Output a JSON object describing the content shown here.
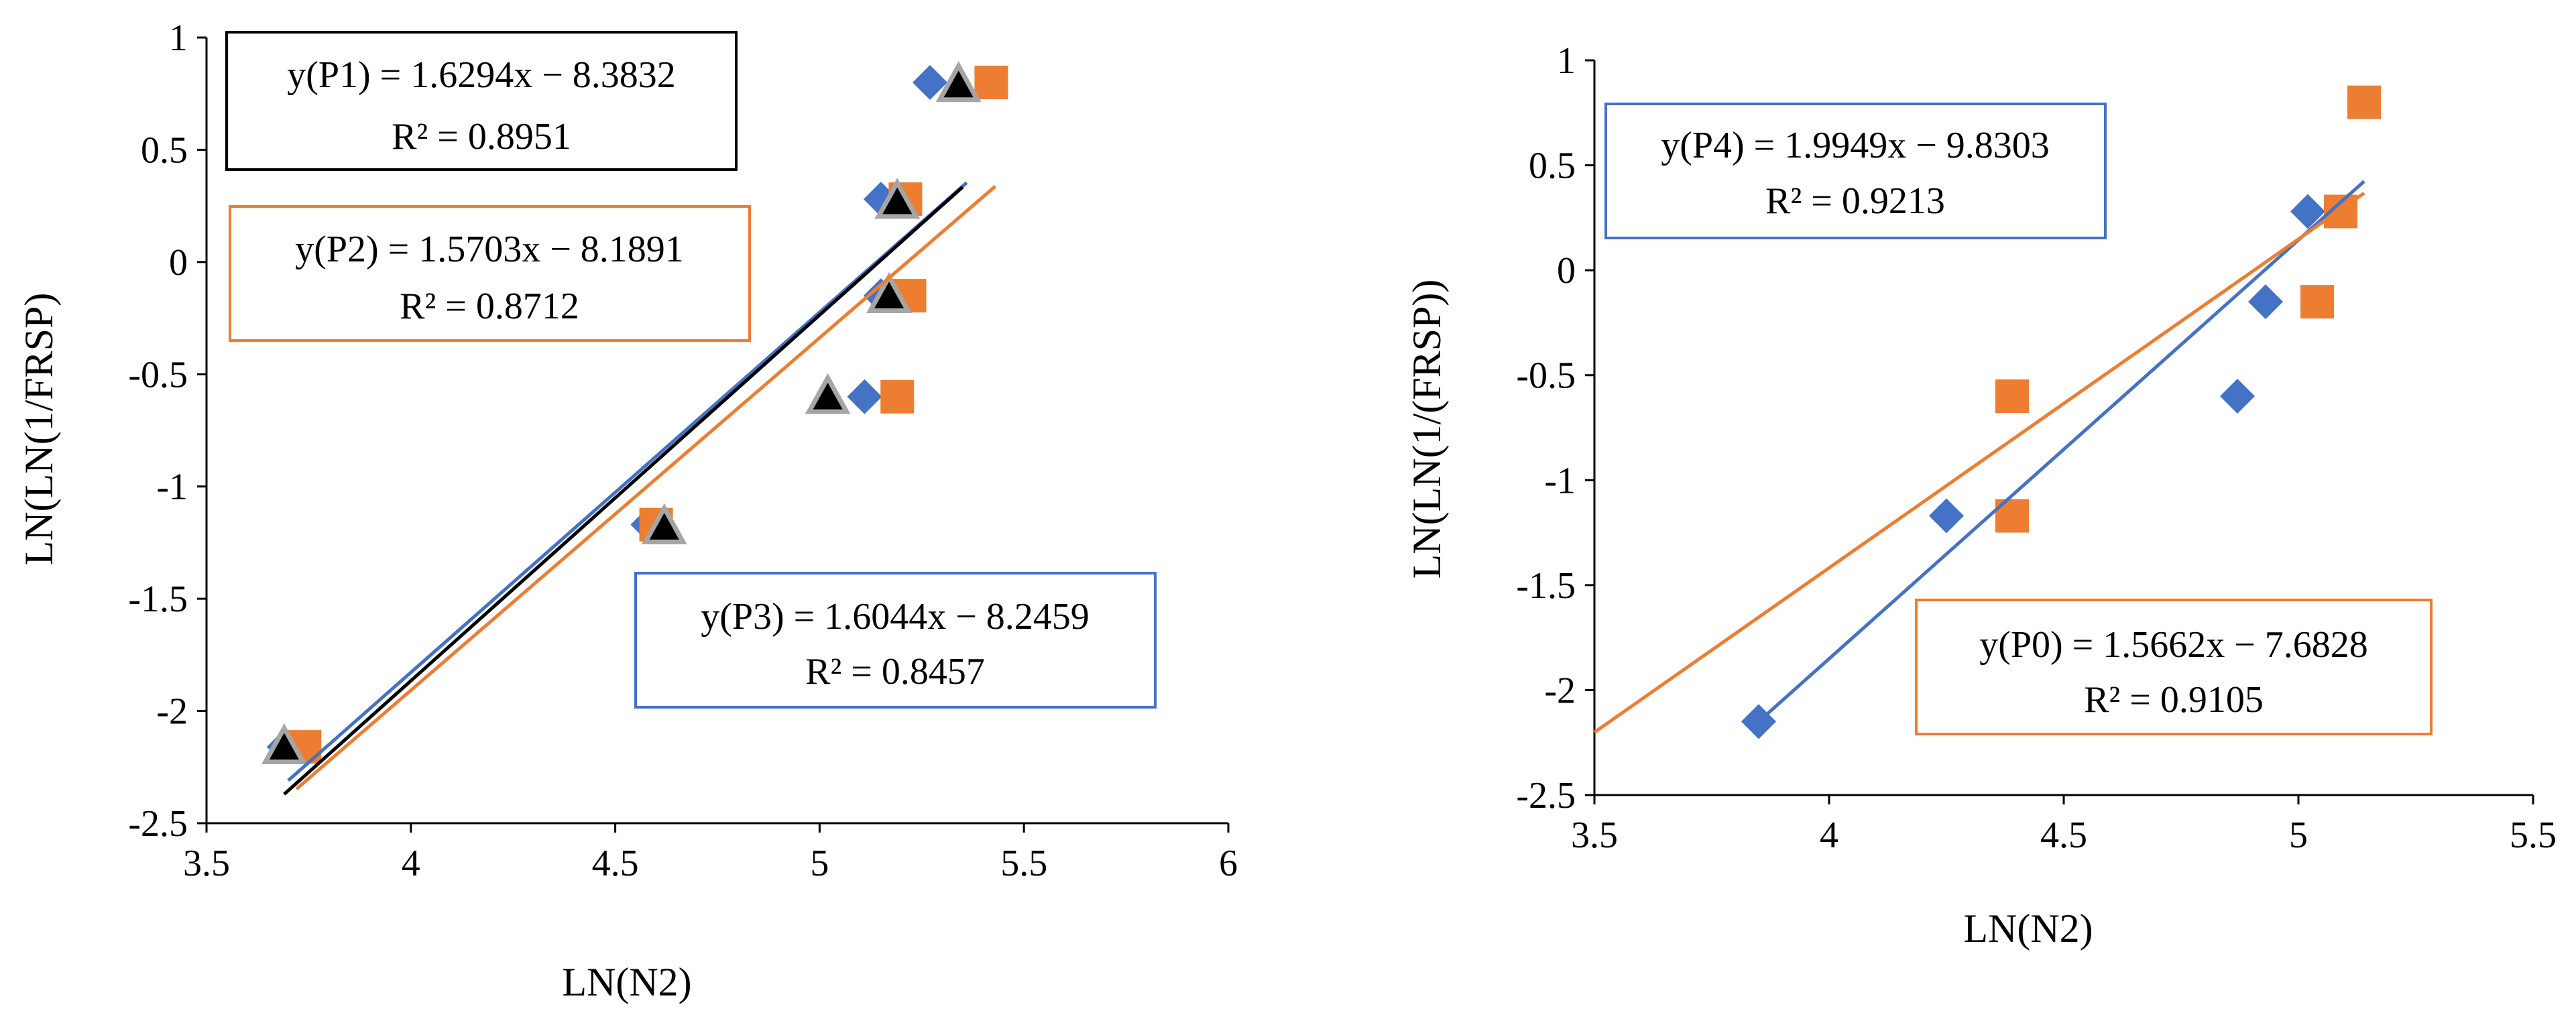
{
  "chart_data": [
    {
      "type": "scatter",
      "id": "left",
      "xlabel": "LN(N2)",
      "ylabel": "LN(LN(1/FRSP)",
      "xlim": [
        3.5,
        6
      ],
      "ylim": [
        -2.5,
        1
      ],
      "xticks": [
        3.5,
        4,
        4.5,
        5,
        5.5,
        6
      ],
      "yticks": [
        -2.5,
        -2,
        -1.5,
        -1,
        -0.5,
        0,
        0.5,
        1
      ],
      "xtick_labels": [
        "3.5",
        "4",
        "4.5",
        "5",
        "5.5",
        "6"
      ],
      "ytick_labels": [
        "-2.5",
        "-2",
        "-1.5",
        "-1",
        "-0.5",
        "0",
        "0.5",
        "1"
      ],
      "series": [
        {
          "name": "P3",
          "marker": "diamond",
          "color": "#4472C4",
          "points": [
            [
              3.69,
              -2.16
            ],
            [
              4.58,
              -1.17
            ],
            [
              5.11,
              -0.6
            ],
            [
              5.15,
              -0.15
            ],
            [
              5.15,
              0.28
            ],
            [
              5.27,
              0.8
            ]
          ],
          "trend": {
            "slope": 1.6044,
            "intercept": -8.2459,
            "x_range": [
              3.7,
              5.36
            ],
            "color": "#4472C4"
          }
        },
        {
          "name": "P2",
          "marker": "square",
          "color": "#ED7D31",
          "points": [
            [
              3.74,
              -2.16
            ],
            [
              4.6,
              -1.17
            ],
            [
              5.19,
              -0.6
            ],
            [
              5.22,
              -0.15
            ],
            [
              5.21,
              0.28
            ],
            [
              5.42,
              0.8
            ]
          ],
          "trend": {
            "slope": 1.5703,
            "intercept": -8.1891,
            "x_range": [
              3.72,
              5.43
            ],
            "color": "#ED7D31"
          }
        },
        {
          "name": "P1",
          "marker": "triangle",
          "color": "#000000",
          "points": [
            [
              3.69,
              -2.16
            ],
            [
              4.62,
              -1.18
            ],
            [
              5.02,
              -0.6
            ],
            [
              5.17,
              -0.15
            ],
            [
              5.19,
              0.27
            ],
            [
              5.34,
              0.79
            ]
          ],
          "trend": {
            "slope": 1.6294,
            "intercept": -8.3832,
            "x_range": [
              3.69,
              5.35
            ],
            "color": "#000000"
          }
        }
      ],
      "annotations": [
        {
          "line1": "y(P1) = 1.6294x  − 8.3832",
          "line2": "R² = 0.8951",
          "border": "#000000"
        },
        {
          "line1": "y(P2) = 1.5703x  −  8.1891",
          "line2": "R² = 0.8712",
          "border": "#ED7D31"
        },
        {
          "line1": "y(P3) = 1.6044x  −  8.2459",
          "line2": "R² = 0.8457",
          "border": "#4472C4"
        }
      ]
    },
    {
      "type": "scatter",
      "id": "right",
      "xlabel": "LN(N2)",
      "ylabel": "LN(LN(1/(FRSP))",
      "xlim": [
        3.5,
        5.5
      ],
      "ylim": [
        -2.5,
        1
      ],
      "xticks": [
        3.5,
        4,
        4.5,
        5,
        5.5
      ],
      "yticks": [
        -2.5,
        -2,
        -1.5,
        -1,
        -0.5,
        0,
        0.5,
        1
      ],
      "xtick_labels": [
        "3.5",
        "4",
        "4.5",
        "5",
        "5.5"
      ],
      "ytick_labels": [
        "-2.5",
        "-2",
        "-1.5",
        "-1",
        "-0.5",
        "0",
        "0.5",
        "1"
      ],
      "series": [
        {
          "name": "P4",
          "marker": "diamond",
          "color": "#4472C4",
          "points": [
            [
              3.85,
              -2.15
            ],
            [
              4.25,
              -1.17
            ],
            [
              4.87,
              -0.6
            ],
            [
              4.93,
              -0.15
            ],
            [
              5.02,
              0.28
            ]
          ],
          "trend": {
            "slope": 1.9949,
            "intercept": -9.8303,
            "x_range": [
              3.85,
              5.14
            ],
            "color": "#4472C4"
          }
        },
        {
          "name": "P0",
          "marker": "square",
          "color": "#ED7D31",
          "points": [
            [
              4.39,
              -0.6
            ],
            [
              4.39,
              -1.17
            ],
            [
              5.04,
              -0.15
            ],
            [
              5.09,
              0.28
            ],
            [
              5.14,
              0.8
            ]
          ],
          "trend": {
            "slope": 1.5662,
            "intercept": -7.6828,
            "x_range": [
              3.5,
              5.14
            ],
            "color": "#ED7D31"
          }
        }
      ],
      "annotations": [
        {
          "line1": "y(P4) = 1.9949x − 9.8303",
          "line2": "R² = 0.9213",
          "border": "#4472C4"
        },
        {
          "line1": "y(P0) = 1.5662x  − 7.6828",
          "line2": "R² = 0.9105",
          "border": "#ED7D31"
        }
      ]
    }
  ]
}
